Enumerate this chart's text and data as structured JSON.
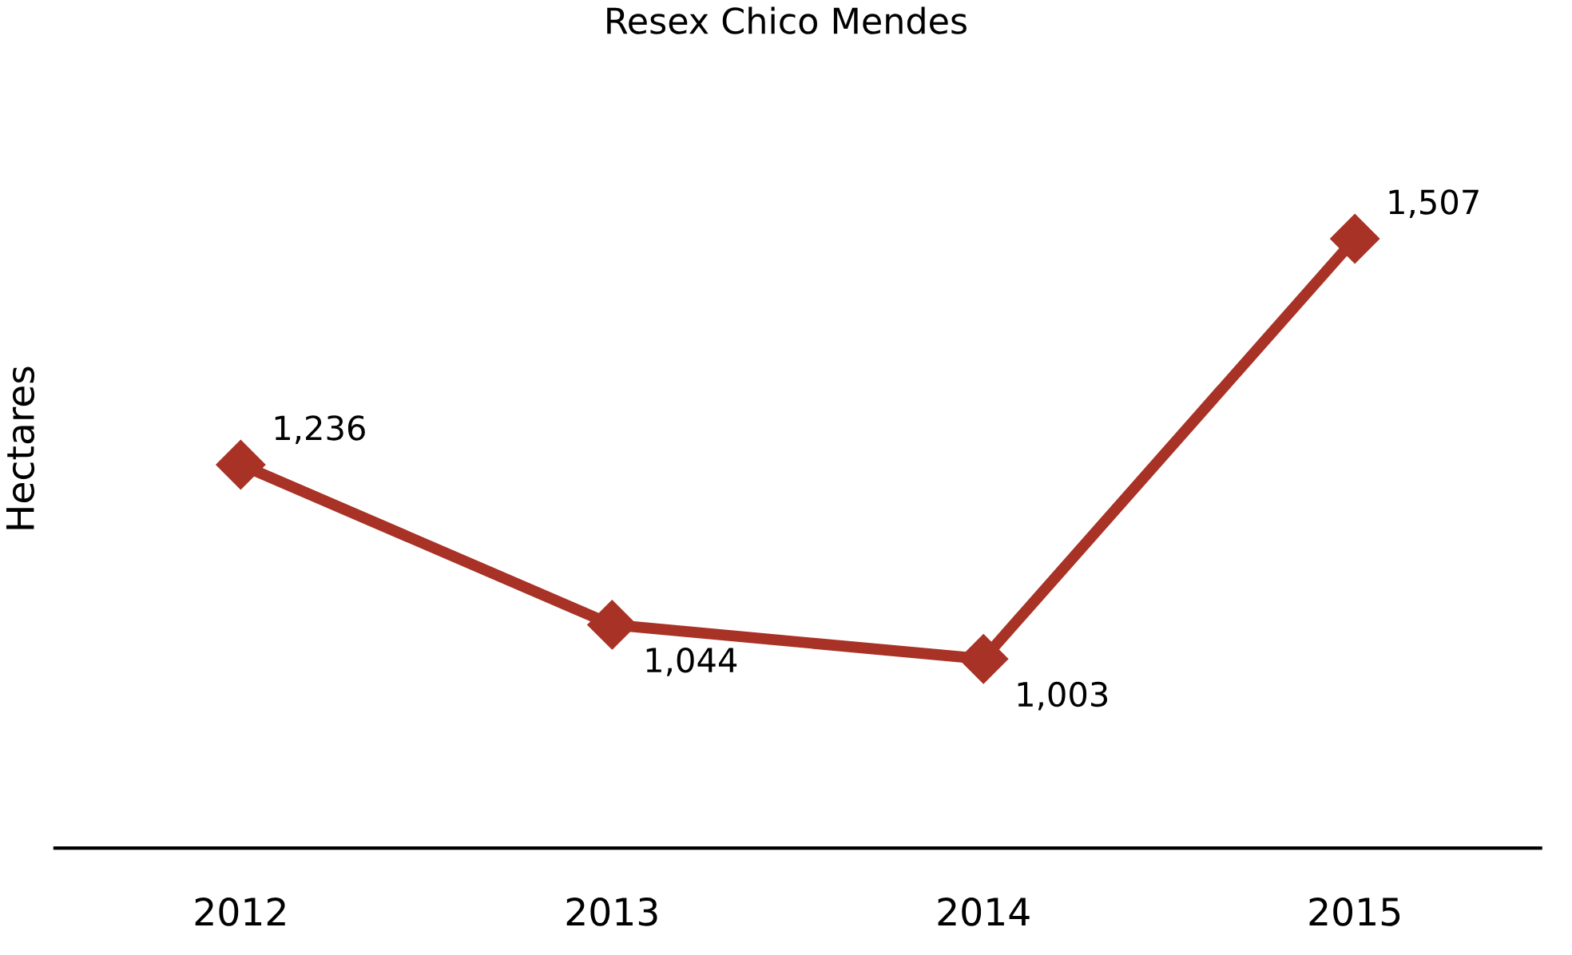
{
  "chart_data": {
    "type": "line",
    "title": "Resex Chico Mendes",
    "ylabel": "Hectares",
    "categories": [
      "2012",
      "2013",
      "2014",
      "2015"
    ],
    "series": [
      {
        "color": "#a93226",
        "values": [
          1236,
          1044,
          1003,
          1507
        ],
        "value_labels": [
          "1,236",
          "1,044",
          "1,003",
          "1,507"
        ]
      }
    ],
    "tick_labels": "x",
    "marker": "diamond",
    "line_style": "solid",
    "grid": false,
    "legend": false
  }
}
